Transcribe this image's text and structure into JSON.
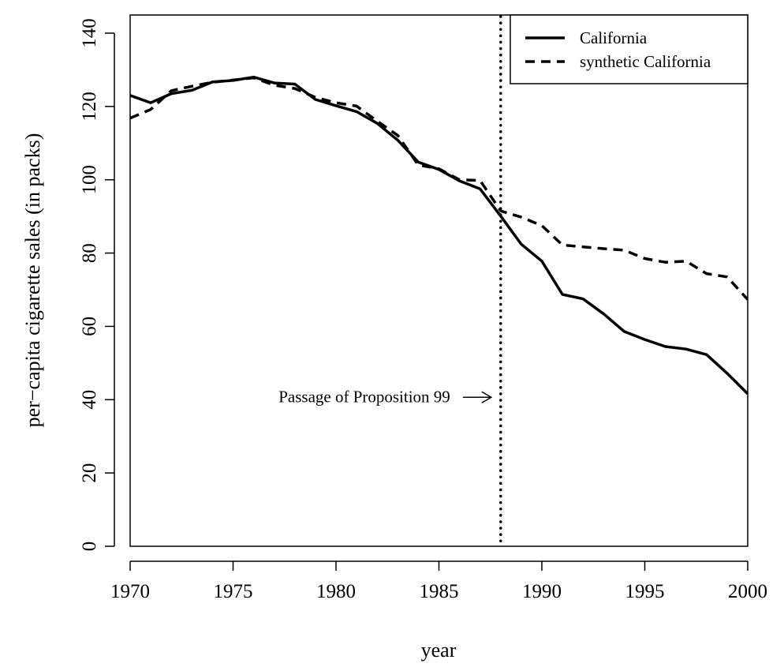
{
  "chart_data": {
    "type": "line",
    "xlabel": "year",
    "ylabel": "per−capita cigarette sales (in packs)",
    "xlim": [
      1970,
      2000
    ],
    "ylim": [
      0,
      140
    ],
    "x_ticks": [
      1970,
      1975,
      1980,
      1985,
      1990,
      1995,
      2000
    ],
    "y_ticks": [
      0,
      20,
      40,
      60,
      80,
      100,
      120,
      140
    ],
    "grid": false,
    "legend_position": "top-right",
    "x": [
      1970,
      1971,
      1972,
      1973,
      1974,
      1975,
      1976,
      1977,
      1978,
      1979,
      1980,
      1981,
      1982,
      1983,
      1984,
      1985,
      1986,
      1987,
      1988,
      1989,
      1990,
      1991,
      1992,
      1993,
      1994,
      1995,
      1996,
      1997,
      1998,
      1999,
      2000
    ],
    "series": [
      {
        "name": "California",
        "line_style": "solid",
        "color": "#000000",
        "values": [
          123.0,
          121.0,
          123.5,
          124.4,
          126.7,
          127.1,
          128.0,
          126.4,
          126.1,
          121.9,
          120.2,
          118.6,
          115.4,
          110.8,
          104.8,
          102.8,
          99.7,
          97.5,
          90.1,
          82.4,
          77.8,
          68.7,
          67.5,
          63.4,
          58.6,
          56.4,
          54.5,
          53.8,
          52.3,
          47.2,
          41.6
        ]
      },
      {
        "name": "synthetic California",
        "line_style": "dashed",
        "color": "#000000",
        "values": [
          116.8,
          119.2,
          124.3,
          125.5,
          126.6,
          127.2,
          127.8,
          125.8,
          124.9,
          122.5,
          121.0,
          120.1,
          116.0,
          112.1,
          104.0,
          103.0,
          100.0,
          99.8,
          91.5,
          89.8,
          87.5,
          82.2,
          81.7,
          81.2,
          80.8,
          78.5,
          77.5,
          77.8,
          74.4,
          73.5,
          67.3
        ]
      }
    ],
    "vertical_line": {
      "x": 1988,
      "line_style": "dotted"
    },
    "annotation": {
      "text": "Passage of Proposition 99",
      "x": 1988,
      "y": 40,
      "arrow": "→"
    }
  }
}
